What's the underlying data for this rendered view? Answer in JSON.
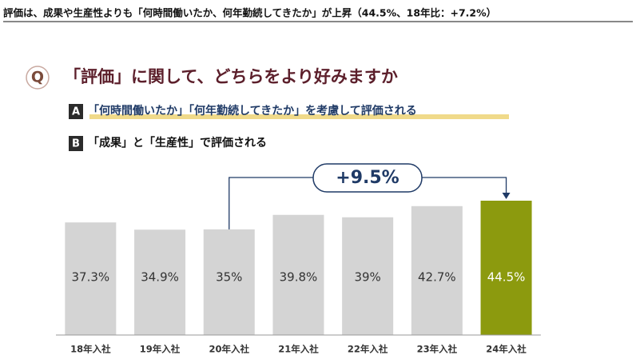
{
  "chart_data": {
    "type": "bar",
    "headline": "評価は、成果や生産性よりも「何時間働いたか、何年勤続してきたか」が上昇（44.5%、18年比：+7.2%）",
    "question_mark": "Q",
    "title": "「評価」に関して、どちらをより好みますか",
    "options": [
      {
        "key": "A",
        "label": "「何時間働いたか」「何年勤続してきたか」を考慮して評価される"
      },
      {
        "key": "B",
        "label": "「成果」と「生産性」で評価される"
      }
    ],
    "categories": [
      "18年入社",
      "19年入社",
      "20年入社",
      "21年入社",
      "22年入社",
      "23年入社",
      "24年入社"
    ],
    "values": [
      37.3,
      34.9,
      35,
      39.8,
      39,
      42.7,
      44.5
    ],
    "value_labels": [
      "37.3%",
      "34.9%",
      "35%",
      "39.8%",
      "39%",
      "42.7%",
      "44.5%"
    ],
    "colors": [
      "#d4d4d4",
      "#d4d4d4",
      "#d4d4d4",
      "#d4d4d4",
      "#d4d4d4",
      "#d4d4d4",
      "#8c9a0e"
    ],
    "annotation": "+9.5%"
  }
}
